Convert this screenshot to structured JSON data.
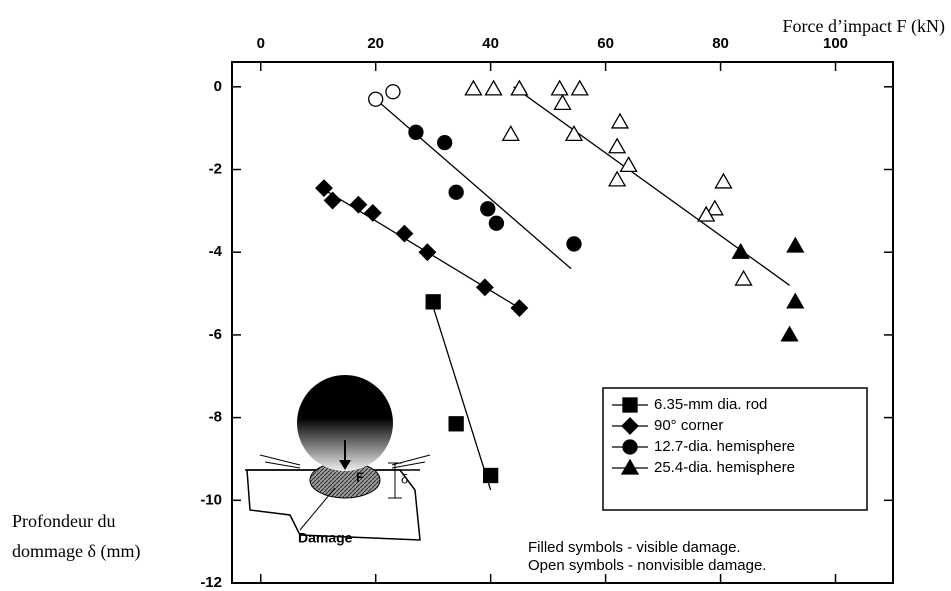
{
  "chart_data": {
    "type": "scatter",
    "x_label": "Force d’impact F (kN)",
    "y_label": [
      "Profondeur du",
      "dommage δ (mm)"
    ],
    "xlim": [
      -5,
      110
    ],
    "ylim": [
      -12,
      0.6
    ],
    "xticks": [
      0,
      20,
      40,
      60,
      80,
      100
    ],
    "yticks": [
      0,
      -2,
      -4,
      -6,
      -8,
      -10,
      -12
    ],
    "series": [
      {
        "name": "6.35-mm dia. rod",
        "marker": "square",
        "color": "#000000",
        "x": [
          30,
          34,
          40
        ],
        "values": [
          -5.2,
          -8.15,
          -9.4
        ],
        "filled": [
          true,
          true,
          true
        ],
        "fit": {
          "x": [
            29.5,
            40
          ],
          "y": [
            -5.1,
            -9.75
          ]
        }
      },
      {
        "name": "90° corner",
        "marker": "diamond",
        "color": "#000000",
        "x": [
          11,
          12.5,
          17,
          19.5,
          25,
          29,
          39,
          45
        ],
        "values": [
          -2.45,
          -2.75,
          -2.85,
          -3.05,
          -3.55,
          -4.0,
          -4.85,
          -5.35
        ],
        "filled": [
          true,
          true,
          true,
          true,
          true,
          true,
          true,
          true
        ],
        "fit": {
          "x": [
            10,
            45
          ],
          "y": [
            -2.4,
            -5.35
          ]
        }
      },
      {
        "name": "12.7-dia. hemisphere",
        "marker": "circle",
        "color": "#000000",
        "x": [
          20,
          23,
          27,
          32,
          34,
          39.5,
          41,
          54.5
        ],
        "values": [
          -0.3,
          -0.12,
          -1.1,
          -1.35,
          -2.55,
          -2.95,
          -3.3,
          -3.8
        ],
        "filled": [
          false,
          false,
          true,
          true,
          true,
          true,
          true,
          true
        ],
        "fit": {
          "x": [
            20,
            54
          ],
          "y": [
            -0.3,
            -4.4
          ]
        }
      },
      {
        "name": "25.4-dia. hemisphere",
        "marker": "triangle",
        "color": "#000000",
        "x": [
          37,
          40.5,
          45,
          52,
          55.5,
          52.5,
          43.5,
          54.5,
          62.5,
          62,
          64,
          62,
          80.5,
          79,
          77.5,
          84,
          83.5,
          92,
          93,
          93
        ],
        "values": [
          -0.05,
          -0.05,
          -0.05,
          -0.05,
          -0.05,
          -0.4,
          -1.15,
          -1.15,
          -0.85,
          -1.45,
          -1.9,
          -2.25,
          -2.3,
          -2.95,
          -3.1,
          -4.65,
          -4.0,
          -6.0,
          -3.85,
          -5.2
        ],
        "filled": [
          false,
          false,
          false,
          false,
          false,
          false,
          false,
          false,
          false,
          false,
          false,
          false,
          false,
          false,
          false,
          false,
          true,
          true,
          true,
          true
        ],
        "fit": {
          "x": [
            44,
            92
          ],
          "y": [
            0,
            -4.8
          ]
        }
      }
    ],
    "annotations": [
      "Filled symbols - visible damage.",
      "Open symbols - nonvisible damage."
    ],
    "inset_labels": [
      "F",
      "δ",
      "Damage"
    ]
  }
}
